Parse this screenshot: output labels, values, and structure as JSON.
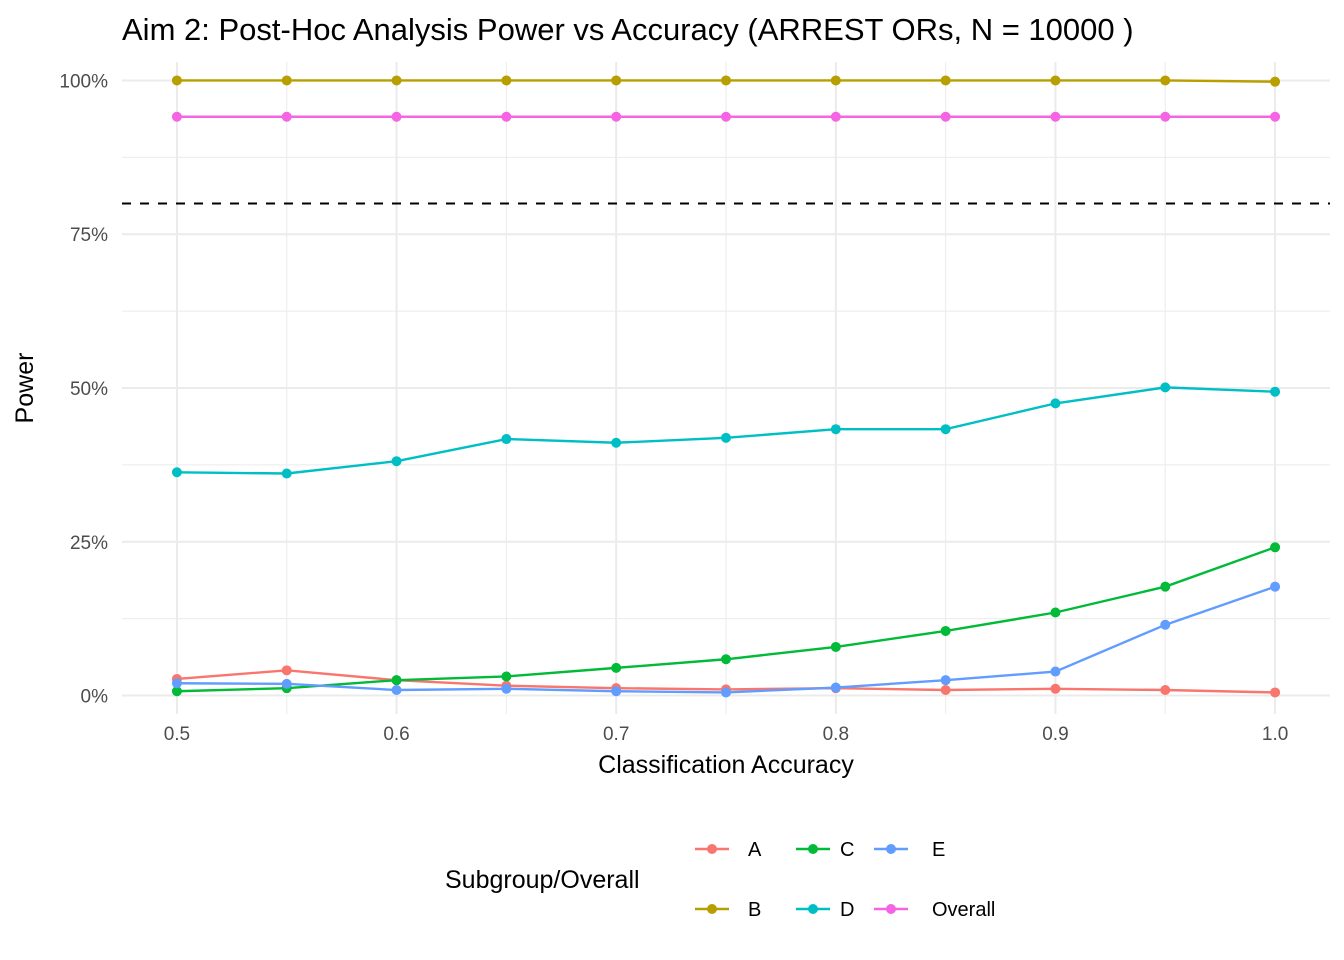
{
  "chart_data": {
    "type": "line",
    "title": "Aim 2: Post-Hoc Analysis Power vs Accuracy (ARREST ORs, N = 10000 )",
    "xlabel": "Classification Accuracy",
    "ylabel": "Power",
    "x": [
      0.5,
      0.55,
      0.6,
      0.65,
      0.7,
      0.75,
      0.8,
      0.85,
      0.9,
      0.95,
      1.0
    ],
    "xlim": [
      0.475,
      1.025
    ],
    "ylim": [
      -0.03,
      1.03
    ],
    "x_ticks": [
      0.5,
      0.6,
      0.7,
      0.8,
      0.9,
      1.0
    ],
    "x_tick_labels": [
      "0.5",
      "0.6",
      "0.7",
      "0.8",
      "0.9",
      "1.0"
    ],
    "y_ticks": [
      0,
      0.25,
      0.5,
      0.75,
      1.0
    ],
    "y_tick_labels": [
      "0%",
      "25%",
      "50%",
      "75%",
      "100%"
    ],
    "grid": true,
    "reference_line": {
      "y": 0.8,
      "style": "dashed",
      "color": "#000000"
    },
    "legend": {
      "title": "Subgroup/Overall",
      "position": "bottom"
    },
    "series": [
      {
        "name": "A",
        "color": "#F8766D",
        "values": [
          0.027,
          0.041,
          0.025,
          0.016,
          0.012,
          0.01,
          0.012,
          0.009,
          0.011,
          0.009,
          0.005
        ]
      },
      {
        "name": "B",
        "color": "#B79F00",
        "values": [
          1.0,
          1.0,
          1.0,
          1.0,
          1.0,
          1.0,
          1.0,
          1.0,
          1.0,
          1.0,
          0.998
        ]
      },
      {
        "name": "C",
        "color": "#00BA38",
        "values": [
          0.007,
          0.012,
          0.025,
          0.031,
          0.045,
          0.059,
          0.079,
          0.105,
          0.135,
          0.177,
          0.241
        ]
      },
      {
        "name": "D",
        "color": "#00BFC4",
        "values": [
          0.363,
          0.361,
          0.381,
          0.417,
          0.411,
          0.419,
          0.433,
          0.433,
          0.475,
          0.501,
          0.494
        ]
      },
      {
        "name": "E",
        "color": "#619CFF",
        "values": [
          0.02,
          0.019,
          0.009,
          0.011,
          0.007,
          0.005,
          0.013,
          0.025,
          0.039,
          0.115,
          0.177
        ]
      },
      {
        "name": "Overall",
        "color": "#F564E3",
        "values": [
          0.941,
          0.941,
          0.941,
          0.941,
          0.941,
          0.941,
          0.941,
          0.941,
          0.941,
          0.941,
          0.941
        ]
      }
    ]
  }
}
